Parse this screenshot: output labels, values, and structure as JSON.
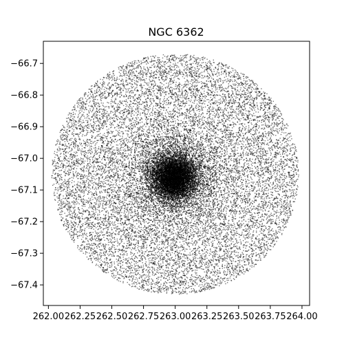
{
  "chart_data": {
    "type": "scatter",
    "title": "NGC 6362",
    "xlabel": "",
    "ylabel": "",
    "xlim": [
      261.96,
      264.06
    ],
    "ylim": [
      -67.465,
      -66.63
    ],
    "xticks": [
      262.0,
      262.25,
      262.5,
      262.75,
      263.0,
      263.25,
      263.5,
      263.75,
      264.0
    ],
    "xtick_labels": [
      "262.00",
      "262.25",
      "262.50",
      "262.75",
      "263.00",
      "263.25",
      "263.50",
      "263.75",
      "264.00"
    ],
    "yticks": [
      -66.7,
      -66.8,
      -66.9,
      -67.0,
      -67.1,
      -67.2,
      -67.3,
      -67.4
    ],
    "ytick_labels": [
      "−66.7",
      "−66.8",
      "−66.9",
      "−67.0",
      "−67.1",
      "−67.2",
      "−67.3",
      "−67.4"
    ],
    "grid": false,
    "marker_color": "#000000",
    "field": {
      "center_ra": 263.0,
      "center_dec": -67.05,
      "radius_deg": 0.38
    },
    "cluster_core": {
      "center_ra": 262.99,
      "center_dec": -67.06,
      "core_radius_deg": 0.035
    }
  }
}
